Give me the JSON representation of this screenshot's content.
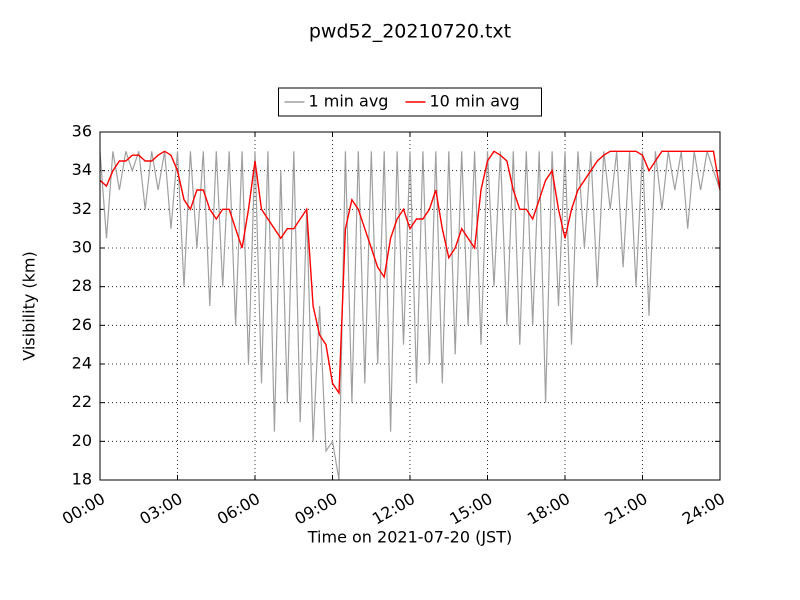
{
  "chart_data": {
    "type": "line",
    "title": "pwd52_20210720.txt",
    "xlabel": "Time on 2021-07-20 (JST)",
    "ylabel": "Visibility (km)",
    "x": [
      "00:00",
      "00:15",
      "00:30",
      "00:45",
      "01:00",
      "01:15",
      "01:30",
      "01:45",
      "02:00",
      "02:15",
      "02:30",
      "02:45",
      "03:00",
      "03:15",
      "03:30",
      "03:45",
      "04:00",
      "04:15",
      "04:30",
      "04:45",
      "05:00",
      "05:15",
      "05:30",
      "05:45",
      "06:00",
      "06:15",
      "06:30",
      "06:45",
      "07:00",
      "07:15",
      "07:30",
      "07:45",
      "08:00",
      "08:15",
      "08:30",
      "08:45",
      "09:00",
      "09:15",
      "09:30",
      "09:45",
      "10:00",
      "10:15",
      "10:30",
      "10:45",
      "11:00",
      "11:15",
      "11:30",
      "11:45",
      "12:00",
      "12:15",
      "12:30",
      "12:45",
      "13:00",
      "13:15",
      "13:30",
      "13:45",
      "14:00",
      "14:15",
      "14:30",
      "14:45",
      "15:00",
      "15:15",
      "15:30",
      "15:45",
      "16:00",
      "16:15",
      "16:30",
      "16:45",
      "17:00",
      "17:15",
      "17:30",
      "17:45",
      "18:00",
      "18:15",
      "18:30",
      "18:45",
      "19:00",
      "19:15",
      "19:30",
      "19:45",
      "20:00",
      "20:15",
      "20:30",
      "20:45",
      "21:00",
      "21:15",
      "21:30",
      "21:45",
      "22:00",
      "22:15",
      "22:30",
      "22:45",
      "23:00",
      "23:15",
      "23:30",
      "23:45",
      "24:00"
    ],
    "series": [
      {
        "name": "1 min avg",
        "color": "#a0a0a0",
        "values": [
          35,
          30.5,
          35,
          33,
          35,
          34,
          35,
          32,
          35,
          33,
          35,
          31,
          35,
          28,
          35,
          30,
          35,
          27,
          35,
          28,
          35,
          26,
          35,
          24,
          35,
          23,
          35,
          20.5,
          34,
          22,
          35,
          21,
          32,
          20,
          27,
          19.5,
          20,
          18,
          35,
          22,
          35,
          23,
          35,
          24,
          35,
          20.5,
          35,
          25,
          35,
          23,
          35,
          24,
          35,
          23,
          35,
          24.5,
          35,
          26,
          35,
          25,
          35,
          28,
          35,
          26,
          35,
          25,
          35,
          26,
          35,
          22,
          35,
          27,
          35,
          25,
          35,
          30,
          35,
          28,
          35,
          32,
          35,
          29,
          35,
          28,
          35,
          26.5,
          35,
          32,
          35,
          33,
          35,
          31,
          35,
          33,
          35,
          34,
          33
        ]
      },
      {
        "name": "10 min avg",
        "color": "#ff0000",
        "values": [
          33.5,
          33.2,
          34,
          34.5,
          34.5,
          34.8,
          34.8,
          34.5,
          34.5,
          34.8,
          35,
          34.8,
          34,
          32.5,
          32,
          33,
          33,
          32,
          31.5,
          32,
          32,
          31,
          30,
          32,
          34.5,
          32,
          31.5,
          31,
          30.5,
          31,
          31,
          31.5,
          32,
          27,
          25.5,
          25,
          23,
          22.5,
          31,
          32.5,
          32,
          31,
          30,
          29,
          28.5,
          30.5,
          31.5,
          32,
          31,
          31.5,
          31.5,
          32,
          33,
          31,
          29.5,
          30,
          31,
          30.5,
          30,
          33,
          34.5,
          35,
          34.8,
          34.5,
          33,
          32,
          32,
          31.5,
          32.5,
          33.5,
          34,
          32,
          30.5,
          32,
          33,
          33.5,
          34,
          34.5,
          34.8,
          35,
          35,
          35,
          35,
          35,
          34.8,
          34,
          34.5,
          35,
          35,
          35,
          35,
          35,
          35,
          35,
          35,
          35,
          33
        ]
      }
    ],
    "xlim": [
      "00:00",
      "24:00"
    ],
    "xticks": [
      "00:00",
      "03:00",
      "06:00",
      "09:00",
      "12:00",
      "15:00",
      "18:00",
      "21:00",
      "24:00"
    ],
    "ylim": [
      18,
      36
    ],
    "yticks": [
      18,
      20,
      22,
      24,
      26,
      28,
      30,
      32,
      34,
      36
    ],
    "grid": true,
    "legend": "upper center"
  }
}
